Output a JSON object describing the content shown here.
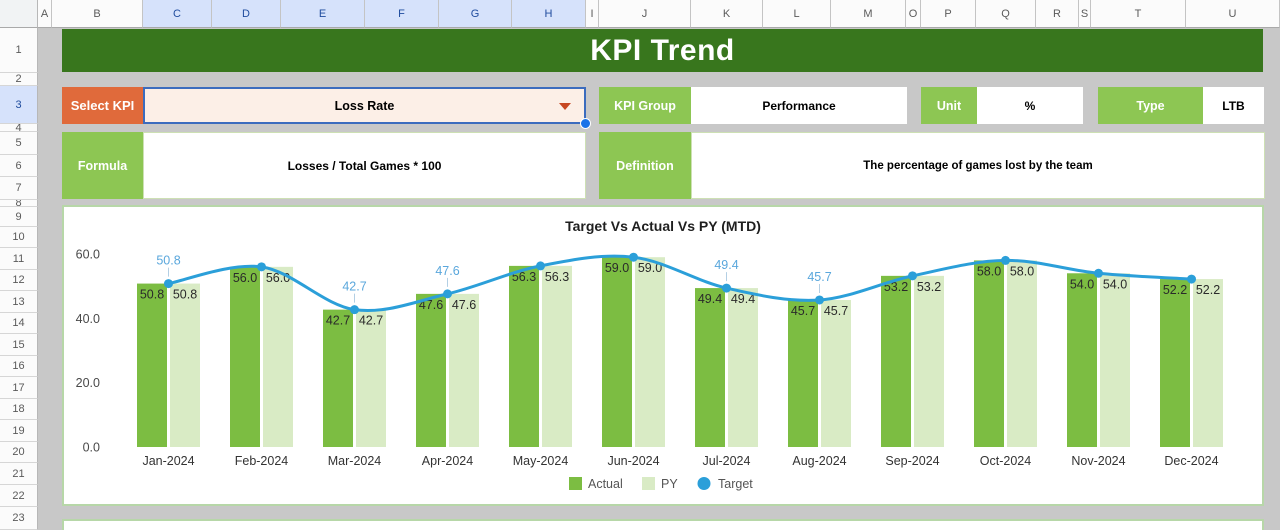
{
  "spreadsheet": {
    "column_headers": [
      "A",
      "B",
      "C",
      "D",
      "E",
      "F",
      "G",
      "H",
      "I",
      "J",
      "K",
      "L",
      "M",
      "O",
      "P",
      "Q",
      "R",
      "S",
      "T",
      "U"
    ],
    "selected_columns": [
      "C",
      "D",
      "E",
      "F",
      "G",
      "H"
    ],
    "row_numbers": [
      "1",
      "2",
      "3",
      "4",
      "5",
      "6",
      "7",
      "8",
      "9",
      "10",
      "11",
      "12",
      "13",
      "14",
      "15",
      "16",
      "17",
      "18",
      "19",
      "20",
      "21",
      "22",
      "23"
    ],
    "selected_row": "3"
  },
  "header": {
    "title": "KPI Trend"
  },
  "kpi_selector": {
    "label": "Select KPI",
    "value": "Loss Rate"
  },
  "fields": {
    "kpi_group": {
      "label": "KPI Group",
      "value": "Performance"
    },
    "unit": {
      "label": "Unit",
      "value": "%"
    },
    "type": {
      "label": "Type",
      "value": "LTB"
    },
    "formula": {
      "label": "Formula",
      "value": "Losses / Total Games * 100"
    },
    "definition": {
      "label": "Definition",
      "value": "The percentage of games lost by the team"
    }
  },
  "theme": {
    "banner_green": "#38761d",
    "label_green": "#8dc653",
    "select_orange": "#e06a3b",
    "dropdown_fill": "#fcefe7",
    "selection_blue": "#3c6cbe",
    "panel_border_green": "#b7d7a8"
  },
  "chart_data": {
    "type": "combo: grouped bar + smooth line",
    "title": "Target Vs Actual Vs PY (MTD)",
    "categories": [
      "Jan-2024",
      "Feb-2024",
      "Mar-2024",
      "Apr-2024",
      "May-2024",
      "Jun-2024",
      "Jul-2024",
      "Aug-2024",
      "Sep-2024",
      "Oct-2024",
      "Nov-2024",
      "Dec-2024"
    ],
    "series": [
      {
        "name": "Actual",
        "type": "bar",
        "color": "#7cbd42",
        "values": [
          50.8,
          56.0,
          42.7,
          47.6,
          56.3,
          59.0,
          49.4,
          45.7,
          53.2,
          58.0,
          54.0,
          52.2
        ]
      },
      {
        "name": "PY",
        "type": "bar",
        "color": "#d9ebc5",
        "values": [
          50.8,
          56.0,
          42.7,
          47.6,
          56.3,
          59.0,
          49.4,
          45.7,
          53.2,
          58.0,
          54.0,
          52.2
        ]
      },
      {
        "name": "Target",
        "type": "line",
        "color": "#2b9fd9",
        "values": [
          50.8,
          56.0,
          42.7,
          47.6,
          56.3,
          59.0,
          49.4,
          45.7,
          53.2,
          58.0,
          54.0,
          52.2
        ]
      }
    ],
    "target_label_indices": [
      0,
      2,
      3,
      6,
      7
    ],
    "target_label_color": "#5aa7dc",
    "bar_label_color": "#2a2a2a",
    "y_ticks": [
      "0.0",
      "20.0",
      "40.0",
      "60.0"
    ],
    "ylim": [
      0,
      65
    ],
    "grid": "off",
    "legend_position": "bottom-center",
    "data_labels": "on"
  }
}
